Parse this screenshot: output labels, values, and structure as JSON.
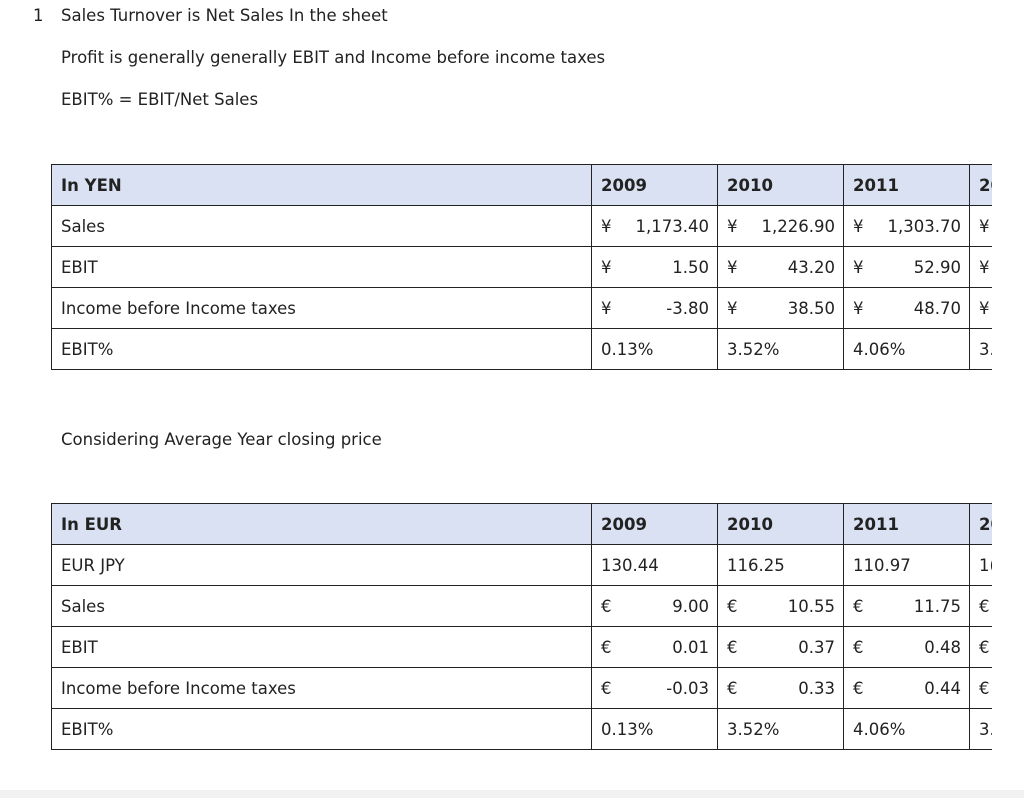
{
  "notes": {
    "item_number": "1",
    "line1": "Sales Turnover is Net Sales In the sheet",
    "line2": "Profit is generally generally EBIT and Income before income taxes",
    "line3": "EBIT% = EBIT/Net Sales",
    "line4": "Considering Average Year closing price"
  },
  "yen_table": {
    "header": [
      "In YEN",
      "2009",
      "2010",
      "2011",
      "20"
    ],
    "rows": [
      {
        "label": "Sales",
        "cells": [
          [
            "¥",
            "1,173.40"
          ],
          [
            "¥",
            "1,226.90"
          ],
          [
            "¥",
            "1,303.70"
          ],
          [
            "¥",
            ""
          ]
        ]
      },
      {
        "label": "EBIT",
        "cells": [
          [
            "¥",
            "1.50"
          ],
          [
            "¥",
            "43.20"
          ],
          [
            "¥",
            "52.90"
          ],
          [
            "¥",
            ""
          ]
        ]
      },
      {
        "label": "Income before Income taxes",
        "cells": [
          [
            "¥",
            "-3.80"
          ],
          [
            "¥",
            "38.50"
          ],
          [
            "¥",
            "48.70"
          ],
          [
            "¥",
            ""
          ]
        ]
      },
      {
        "label": "EBIT%",
        "pcts": [
          "0.13%",
          "3.52%",
          "4.06%",
          "3."
        ]
      }
    ]
  },
  "eur_table": {
    "header": [
      "In EUR",
      "2009",
      "2010",
      "2011",
      "20"
    ],
    "fx_row": {
      "label": "EUR JPY",
      "pcts": [
        "130.44",
        "116.25",
        "110.97",
        "1("
      ]
    },
    "rows": [
      {
        "label": "Sales",
        "cells": [
          [
            "€",
            "9.00"
          ],
          [
            "€",
            "10.55"
          ],
          [
            "€",
            "11.75"
          ],
          [
            "€",
            ""
          ]
        ]
      },
      {
        "label": "EBIT",
        "cells": [
          [
            "€",
            "0.01"
          ],
          [
            "€",
            "0.37"
          ],
          [
            "€",
            "0.48"
          ],
          [
            "€",
            ""
          ]
        ]
      },
      {
        "label": "Income before Income taxes",
        "cells": [
          [
            "€",
            "-0.03"
          ],
          [
            "€",
            "0.33"
          ],
          [
            "€",
            "0.44"
          ],
          [
            "€",
            ""
          ]
        ]
      },
      {
        "label": "EBIT%",
        "pcts": [
          "0.13%",
          "3.52%",
          "4.06%",
          "3."
        ]
      }
    ]
  },
  "colors": {
    "header_bg": "#d9e1f2",
    "border": "#222222"
  }
}
